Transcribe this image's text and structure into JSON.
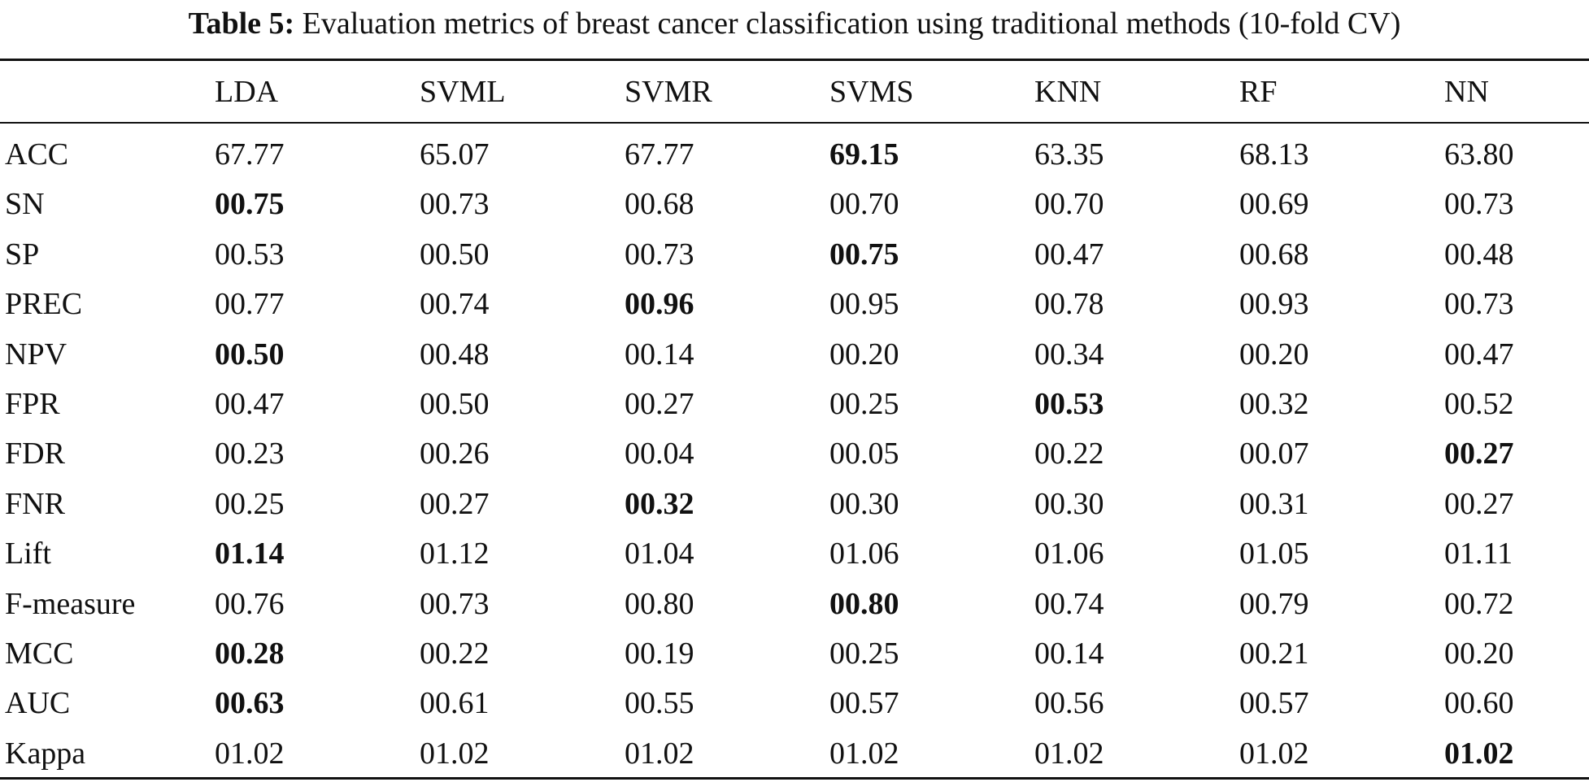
{
  "caption": {
    "label": "Table 5:",
    "text": "Evaluation metrics of breast cancer classification using traditional methods (10-fold CV)"
  },
  "table": {
    "columns": [
      "",
      "LDA",
      "SVML",
      "SVMR",
      "SVMS",
      "KNN",
      "RF",
      "NN"
    ],
    "rows": [
      {
        "metric": "ACC",
        "values": [
          "67.77",
          "65.07",
          "67.77",
          "69.15",
          "63.35",
          "68.13",
          "63.80"
        ],
        "bold_index": 3
      },
      {
        "metric": "SN",
        "values": [
          "00.75",
          "00.73",
          "00.68",
          "00.70",
          "00.70",
          "00.69",
          "00.73"
        ],
        "bold_index": 0
      },
      {
        "metric": "SP",
        "values": [
          "00.53",
          "00.50",
          "00.73",
          "00.75",
          "00.47",
          "00.68",
          "00.48"
        ],
        "bold_index": 3
      },
      {
        "metric": "PREC",
        "values": [
          "00.77",
          "00.74",
          "00.96",
          "00.95",
          "00.78",
          "00.93",
          "00.73"
        ],
        "bold_index": 2
      },
      {
        "metric": "NPV",
        "values": [
          "00.50",
          "00.48",
          "00.14",
          "00.20",
          "00.34",
          "00.20",
          "00.47"
        ],
        "bold_index": 0
      },
      {
        "metric": "FPR",
        "values": [
          "00.47",
          "00.50",
          "00.27",
          "00.25",
          "00.53",
          "00.32",
          "00.52"
        ],
        "bold_index": 4
      },
      {
        "metric": "FDR",
        "values": [
          "00.23",
          "00.26",
          "00.04",
          "00.05",
          "00.22",
          "00.07",
          "00.27"
        ],
        "bold_index": 6
      },
      {
        "metric": "FNR",
        "values": [
          "00.25",
          "00.27",
          "00.32",
          "00.30",
          "00.30",
          "00.31",
          "00.27"
        ],
        "bold_index": 2
      },
      {
        "metric": "Lift",
        "values": [
          "01.14",
          "01.12",
          "01.04",
          "01.06",
          "01.06",
          "01.05",
          "01.11"
        ],
        "bold_index": 0
      },
      {
        "metric": "F-measure",
        "values": [
          "00.76",
          "00.73",
          "00.80",
          "00.80",
          "00.74",
          "00.79",
          "00.72"
        ],
        "bold_index": 3
      },
      {
        "metric": "MCC",
        "values": [
          "00.28",
          "00.22",
          "00.19",
          "00.25",
          "00.14",
          "00.21",
          "00.20"
        ],
        "bold_index": 0
      },
      {
        "metric": "AUC",
        "values": [
          "00.63",
          "00.61",
          "00.55",
          "00.57",
          "00.56",
          "00.57",
          "00.60"
        ],
        "bold_index": 0
      },
      {
        "metric": "Kappa",
        "values": [
          "01.02",
          "01.02",
          "01.02",
          "01.02",
          "01.02",
          "01.02",
          "01.02"
        ],
        "bold_index": 6
      }
    ]
  }
}
